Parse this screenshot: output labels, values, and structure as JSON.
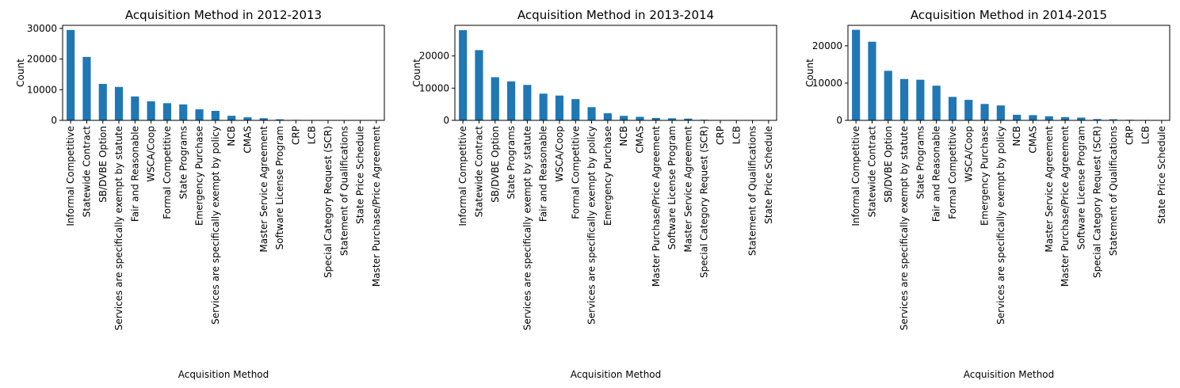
{
  "chart_data": [
    {
      "type": "bar",
      "title": "Acquisition Method in 2012-2013",
      "xlabel": "Acquisition Method",
      "ylabel": "Count",
      "ylim": [
        0,
        31000
      ],
      "yticks": [
        0,
        10000,
        20000,
        30000
      ],
      "grid": false,
      "categories": [
        "Informal Competitive",
        "Statewide Contract",
        "SB/DVBE Option",
        "Services are specifically exempt by statute",
        "Fair and Reasonable",
        "WSCA/Coop",
        "Formal Competitive",
        "State Programs",
        "Emergency Purchase",
        "Services are specifically exempt by policy",
        "NCB",
        "CMAS",
        "Master Service Agreement",
        "Software License Program",
        "CRP",
        "LCB",
        "Special Category Request (SCR)",
        "Statement of Qualifications",
        "State Price Schedule",
        "Master Purchase/Price Agreement"
      ],
      "values": [
        29500,
        20700,
        11900,
        10900,
        7800,
        6200,
        5600,
        5200,
        3600,
        3100,
        1500,
        1000,
        700,
        350,
        150,
        120,
        80,
        60,
        40,
        15
      ]
    },
    {
      "type": "bar",
      "title": "Acquisition Method in 2013-2014",
      "xlabel": "Acquisition Method",
      "ylabel": "Count",
      "ylim": [
        0,
        29500
      ],
      "yticks": [
        0,
        10000,
        20000
      ],
      "grid": false,
      "categories": [
        "Informal Competitive",
        "Statewide Contract",
        "SB/DVBE Option",
        "State Programs",
        "Services are specifically exempt by statute",
        "Fair and Reasonable",
        "WSCA/Coop",
        "Formal Competitive",
        "Services are specifically exempt by policy",
        "Emergency Purchase",
        "NCB",
        "CMAS",
        "Master Purchase/Price Agreement",
        "Software License Program",
        "Master Service Agreement",
        "Special Category Request (SCR)",
        "CRP",
        "LCB",
        "Statement of Qualifications",
        "State Price Schedule"
      ],
      "values": [
        28000,
        21800,
        13400,
        12100,
        11000,
        8300,
        7700,
        6600,
        4100,
        2200,
        1400,
        1100,
        750,
        650,
        550,
        200,
        120,
        100,
        60,
        30
      ]
    },
    {
      "type": "bar",
      "title": "Acquisition Method in 2014-2015",
      "xlabel": "Acquisition Method",
      "ylabel": "Count",
      "ylim": [
        0,
        25500
      ],
      "yticks": [
        0,
        10000,
        20000
      ],
      "grid": false,
      "categories": [
        "Informal Competitive",
        "Statewide Contract",
        "SB/DVBE Option",
        "Services are specifically exempt by statute",
        "State Programs",
        "Fair and Reasonable",
        "Formal Competitive",
        "WSCA/Coop",
        "Emergency Purchase",
        "Services are specifically exempt by policy",
        "NCB",
        "CMAS",
        "Master Service Agreement",
        "Master Purchase/Price Agreement",
        "Software License Program",
        "Special Category Request (SCR)",
        "Statement of Qualifications",
        "CRP",
        "LCB",
        "State Price Schedule"
      ],
      "values": [
        24300,
        21100,
        13300,
        11100,
        10900,
        9300,
        6300,
        5500,
        4400,
        4000,
        1500,
        1400,
        1100,
        850,
        750,
        350,
        300,
        150,
        120,
        30
      ]
    }
  ]
}
